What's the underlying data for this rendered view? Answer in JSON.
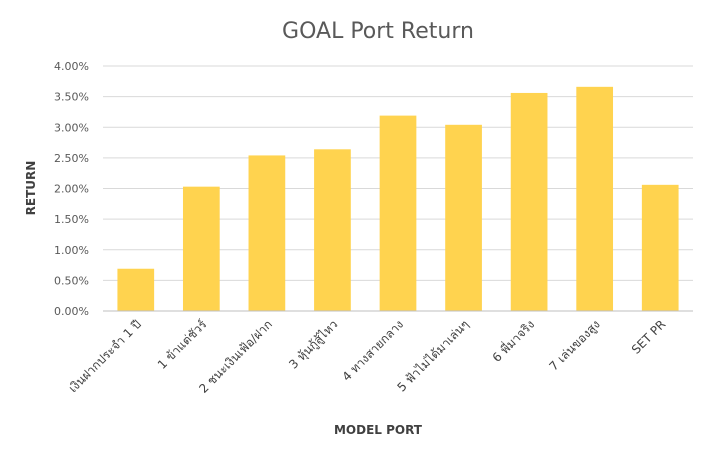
{
  "chart_data": {
    "type": "bar",
    "title": "GOAL Port Return",
    "xlabel": "MODEL PORT",
    "ylabel": "RETURN",
    "categories": [
      "เงินฝากประจำ 1 ปี",
      "1 ข้าแต่ชัวร์",
      "2 ชนะเงินเฟ้อ/ฝาก",
      "3 หุ้นกู้สู้ไหว",
      "4 ทางสายกลาง",
      "5 ฟ้าไม่ได้มาเล่นๆ",
      "6 พี่มาจริง",
      "7 เล่นของสูง",
      "SET PR"
    ],
    "values": [
      0.0069,
      0.0203,
      0.0254,
      0.0264,
      0.0319,
      0.0304,
      0.0356,
      0.0366,
      0.0206
    ],
    "ylim": [
      0,
      0.04
    ],
    "yticks": [
      "0.00%",
      "0.50%",
      "1.00%",
      "1.50%",
      "2.00%",
      "2.50%",
      "3.00%",
      "3.50%",
      "4.00%"
    ],
    "grid": true,
    "bar_color": "#FFD34F"
  }
}
